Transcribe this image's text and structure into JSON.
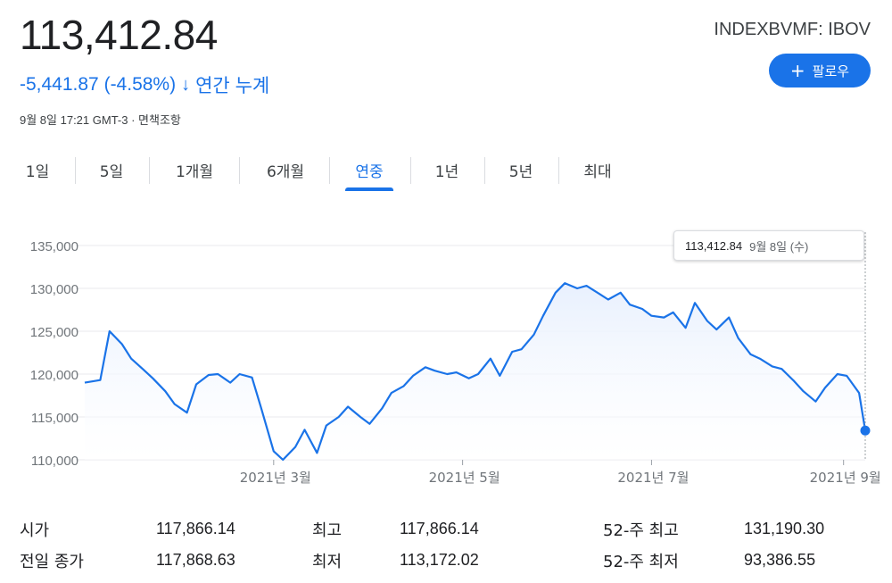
{
  "quote": {
    "price": "113,412.84",
    "change": "-5,441.87 (-4.58%)",
    "change_arrow": "↓",
    "change_period": "연간 누계",
    "timestamp": "9월 8일 17:21 GMT-3 · 면책조항",
    "ticker": "INDEXBVMF: IBOV"
  },
  "follow_button": {
    "icon": "plus-icon",
    "label": "팔로우"
  },
  "tabs": [
    {
      "label": "1일"
    },
    {
      "label": "5일"
    },
    {
      "label": "1개월"
    },
    {
      "label": "6개월"
    },
    {
      "label": "연중",
      "active": true
    },
    {
      "label": "1년"
    },
    {
      "label": "5년"
    },
    {
      "label": "최대"
    }
  ],
  "tooltip": {
    "value": "113,412.84",
    "date": "9월 8일 (수)"
  },
  "colors": {
    "accent": "#1a73e8",
    "line": "#1a73e8",
    "fill": "#e8f0fe"
  },
  "chart_data": {
    "type": "area",
    "y_ticks": [
      "135,000",
      "130,000",
      "125,000",
      "120,000",
      "115,000",
      "110,000"
    ],
    "ylim": [
      110000,
      135000
    ],
    "x_tick_labels": [
      "2021년 3월",
      "2021년 5월",
      "2021년 7월",
      "2021년 9월"
    ],
    "x_tick_dates": [
      "2021-03-01",
      "2021-05-01",
      "2021-07-01",
      "2021-09-01"
    ],
    "x_range": [
      "2020-12-30",
      "2021-09-08"
    ],
    "grid": true,
    "x": [
      "2020-12-30",
      "2021-01-04",
      "2021-01-07",
      "2021-01-11",
      "2021-01-14",
      "2021-01-18",
      "2021-01-21",
      "2021-01-25",
      "2021-01-28",
      "2021-02-01",
      "2021-02-04",
      "2021-02-08",
      "2021-02-11",
      "2021-02-15",
      "2021-02-18",
      "2021-02-22",
      "2021-02-25",
      "2021-03-01",
      "2021-03-04",
      "2021-03-08",
      "2021-03-11",
      "2021-03-15",
      "2021-03-18",
      "2021-03-22",
      "2021-03-25",
      "2021-03-29",
      "2021-04-01",
      "2021-04-05",
      "2021-04-08",
      "2021-04-12",
      "2021-04-15",
      "2021-04-19",
      "2021-04-22",
      "2021-04-26",
      "2021-04-29",
      "2021-05-03",
      "2021-05-06",
      "2021-05-10",
      "2021-05-13",
      "2021-05-17",
      "2021-05-20",
      "2021-05-24",
      "2021-05-27",
      "2021-05-31",
      "2021-06-03",
      "2021-06-07",
      "2021-06-10",
      "2021-06-14",
      "2021-06-17",
      "2021-06-21",
      "2021-06-24",
      "2021-06-28",
      "2021-07-01",
      "2021-07-05",
      "2021-07-08",
      "2021-07-12",
      "2021-07-15",
      "2021-07-19",
      "2021-07-22",
      "2021-07-26",
      "2021-07-29",
      "2021-08-02",
      "2021-08-05",
      "2021-08-09",
      "2021-08-12",
      "2021-08-16",
      "2021-08-19",
      "2021-08-23",
      "2021-08-26",
      "2021-08-30",
      "2021-09-02",
      "2021-09-06",
      "2021-09-08"
    ],
    "values": [
      119000,
      119300,
      125000,
      123500,
      121800,
      120500,
      119500,
      118000,
      116500,
      115500,
      118800,
      119900,
      120000,
      119000,
      120000,
      119600,
      116000,
      111000,
      110000,
      111500,
      113500,
      110800,
      114000,
      115000,
      116200,
      115000,
      114200,
      116000,
      117800,
      118600,
      119800,
      120800,
      120400,
      120000,
      120200,
      119500,
      120000,
      121800,
      119800,
      122600,
      122900,
      124600,
      126800,
      129500,
      130600,
      130000,
      130300,
      129400,
      128700,
      129500,
      128100,
      127600,
      126800,
      126600,
      127200,
      125400,
      128300,
      126200,
      125200,
      126600,
      124200,
      122300,
      121800,
      120900,
      120600,
      119200,
      118000,
      116800,
      118400,
      120000,
      119800,
      117800,
      113412.84
    ]
  },
  "stats": {
    "open_label": "시가",
    "open_value": "117,866.14",
    "prev_close_label": "전일 종가",
    "prev_close_value": "117,868.63",
    "high_label": "최고",
    "high_value": "117,866.14",
    "low_label": "최저",
    "low_value": "113,172.02",
    "high52_label": "52-주 최고",
    "high52_value": "131,190.30",
    "low52_label": "52-주 최저",
    "low52_value": "93,386.55"
  }
}
